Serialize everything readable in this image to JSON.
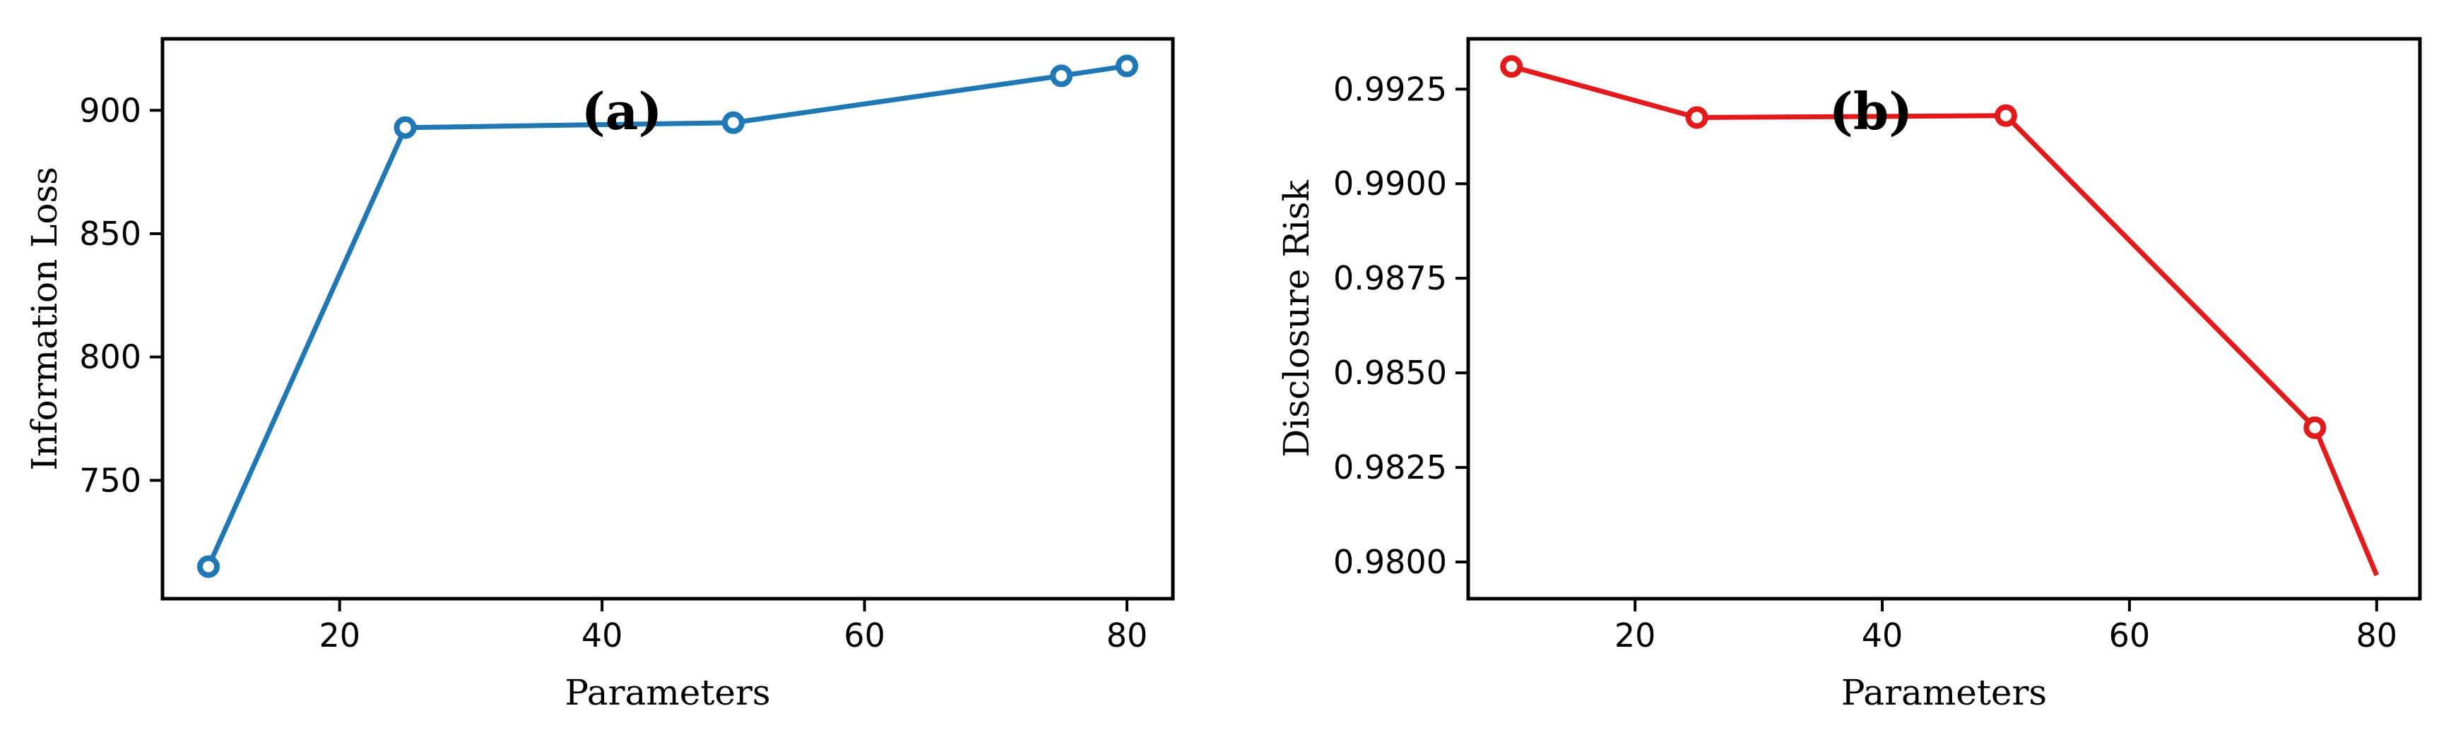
{
  "chart_data": [
    {
      "type": "line",
      "panel_label": "(a)",
      "xlabel": "Parameters",
      "ylabel": "Information Loss",
      "xlim": [
        6.5,
        83.5
      ],
      "ylim": [
        702,
        929
      ],
      "xticks": [
        20,
        40,
        60,
        80
      ],
      "yticks": [
        750,
        800,
        850,
        900
      ],
      "color": "#1f77b4",
      "series": [
        {
          "x": [
            10,
            25,
            50,
            75,
            80
          ],
          "y": [
            715,
            893,
            895,
            914,
            918
          ],
          "markers": [
            true,
            true,
            true,
            true,
            true
          ]
        }
      ]
    },
    {
      "type": "line",
      "panel_label": "(b)",
      "xlabel": "Parameters",
      "ylabel": "Disclosure Risk",
      "xlim": [
        6.5,
        83.5
      ],
      "ylim": [
        0.97903,
        0.99383
      ],
      "xticks": [
        20,
        40,
        60,
        80
      ],
      "yticks": [
        0.98,
        0.9825,
        0.985,
        0.9875,
        0.99,
        0.9925
      ],
      "ytick_labels": [
        "0.9800",
        "0.9825",
        "0.9850",
        "0.9875",
        "0.9900",
        "0.9925"
      ],
      "color": "#e31a1c",
      "series": [
        {
          "x": [
            10,
            25,
            50,
            75,
            80
          ],
          "y": [
            0.9931,
            0.99175,
            0.9918,
            0.98355,
            0.97965
          ],
          "markers": [
            true,
            true,
            true,
            true,
            false
          ]
        }
      ]
    }
  ]
}
